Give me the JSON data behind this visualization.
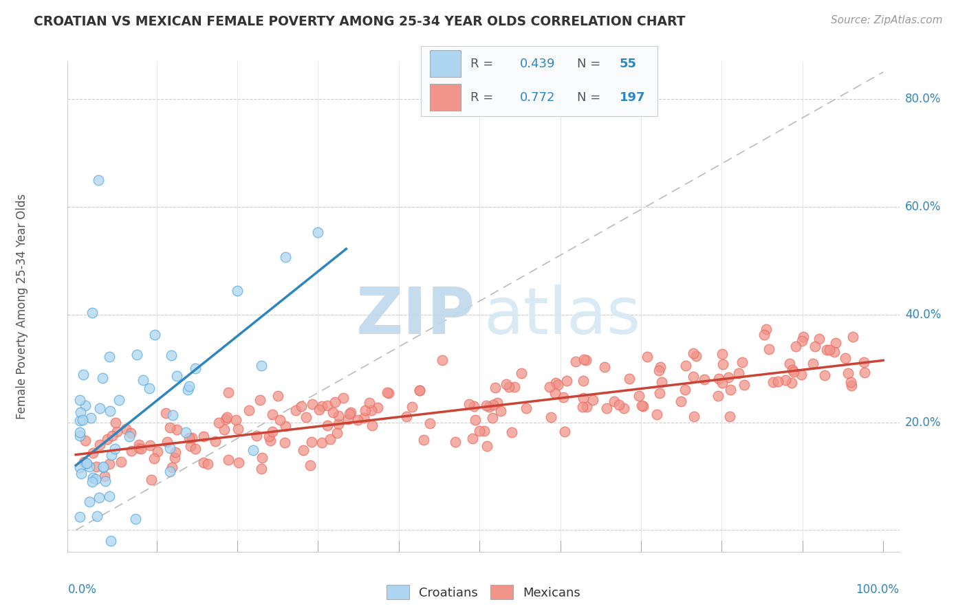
{
  "title": "CROATIAN VS MEXICAN FEMALE POVERTY AMONG 25-34 YEAR OLDS CORRELATION CHART",
  "source": "Source: ZipAtlas.com",
  "ylabel": "Female Poverty Among 25-34 Year Olds",
  "croatian_color": "#AED6F1",
  "mexican_color": "#F1948A",
  "croatian_edge_color": "#5DADE2",
  "mexican_edge_color": "#EC7063",
  "croatian_line_color": "#2E86C1",
  "mexican_line_color": "#CB4335",
  "ref_line_color": "#BBBBBB",
  "legend_text_color": "#2E86C1",
  "legend_label_color": "#555555",
  "background_color": "#FFFFFF",
  "watermark_zip_color": "#BFD9EE",
  "watermark_atlas_color": "#D5E8F3",
  "croatian_R": "0.439",
  "croatian_N": "55",
  "mexican_R": "0.772",
  "mexican_N": "197",
  "xlim": [
    0.0,
    1.0
  ],
  "ylim": [
    0.0,
    0.85
  ],
  "yticks": [
    0.0,
    0.2,
    0.4,
    0.6,
    0.8
  ],
  "ytick_labels": [
    "",
    "20.0%",
    "40.0%",
    "60.0%",
    "80.0%"
  ]
}
